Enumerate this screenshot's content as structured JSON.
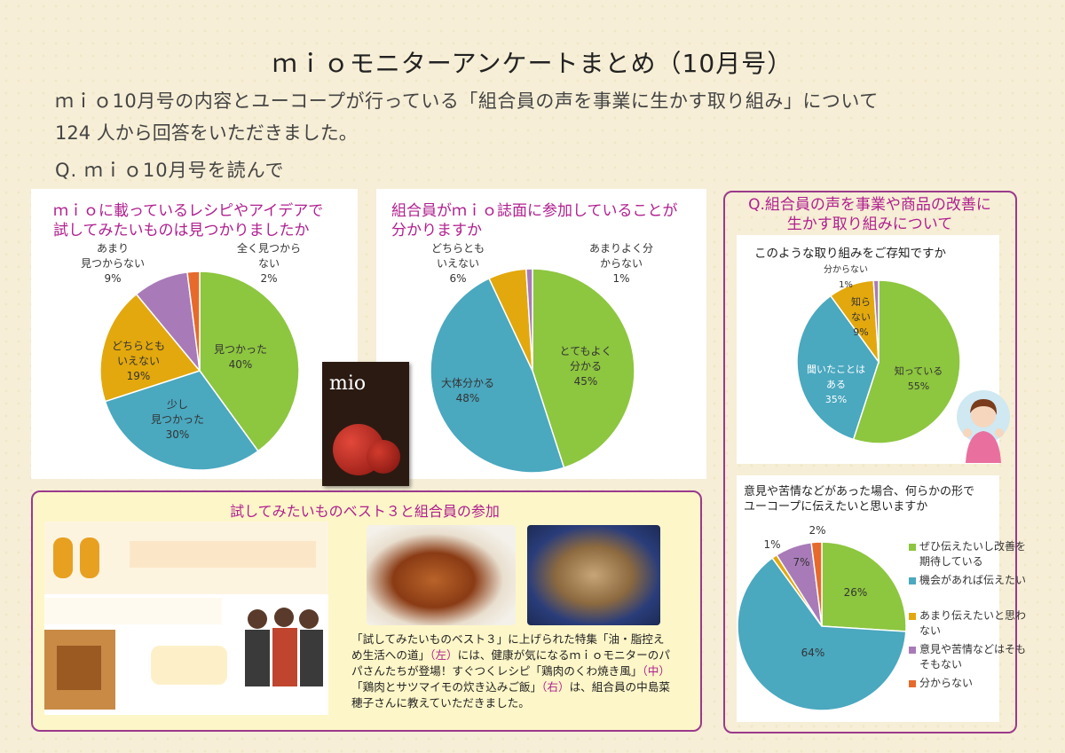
{
  "header": {
    "title": "ｍｉｏモニターアンケートまとめ（10月号）",
    "intro_line1": "ｍｉｏ10月号の内容とユーコープが行っている「組合員の声を事業に生かす取り組み」について",
    "intro_line2": "124 人から回答をいただきました。",
    "question": "Q. ｍｉｏ10月号を読んで"
  },
  "magazine": {
    "title": "mio"
  },
  "charts": {
    "c1": {
      "title_line1": "ｍｉｏに載っているレシピやアイデアで",
      "title_line2": "試してみたいものは見つかりましたか",
      "labels": [
        "見つかった",
        "少し\n見つかった",
        "どちらとも\nいえない",
        "あまり\n見つからない",
        "全く見つから\nない"
      ],
      "pcts": [
        "40%",
        "30%",
        "19%",
        "9%",
        "2%"
      ]
    },
    "c2": {
      "title_line1": "組合員がｍｉｏ誌面に参加していることが",
      "title_line2": "分かりますか",
      "labels": [
        "とてもよく\n分かる",
        "大体分かる",
        "どちらとも\nいえない",
        "あまりよく分\nからない"
      ],
      "pcts": [
        "45%",
        "48%",
        "6%",
        "1%"
      ]
    },
    "right_header": "Q.組合員の声を事業や商品の改善に生かす取り組みについて",
    "c3": {
      "title": "このような取り組みをご存知ですか",
      "labels": [
        "知っている",
        "聞いたことは\nある",
        "知ら\nない",
        "分からない"
      ],
      "pcts": [
        "55%",
        "35%",
        "9%",
        "1%"
      ]
    },
    "c4": {
      "title_line1": "意見や苦情などがあった場合、何らかの形で",
      "title_line2": "ユーコープに伝えたいと思いますか",
      "pcts": [
        "26%",
        "64%",
        "1%",
        "7%",
        "2%"
      ],
      "legend": [
        "ぜひ伝えたいし改善を\n期待している",
        "機会があれば伝えたい",
        "あまり伝えたいと思わ\nない",
        "意見や苦情などはそも\nそもない",
        "分からない"
      ]
    }
  },
  "bottom": {
    "title": "試してみたいものベスト３と組合員の参加",
    "caption_a": "「試してみたいものベスト３」に上げられた特集「油・脂控えめ生活への道」",
    "left_tag": "（左）",
    "caption_b": "には、健康が気になるｍｉｏモニターのパパさんたちが登場！すぐつくレシピ「鶏肉のくわ焼き風」",
    "mid_tag": "（中）",
    "caption_c": "「鶏肉とサツマイモの炊き込みご飯」",
    "right_tag": "（右）",
    "caption_d": "は、組合員の中島菜穂子さんに教えていただきました。"
  },
  "chart_data": [
    {
      "type": "pie",
      "title": "ｍｉｏに載っているレシピやアイデアで試してみたいものは見つかりましたか",
      "categories": [
        "見つかった",
        "少し見つかった",
        "どちらともいえない",
        "あまり見つからない",
        "全く見つからない"
      ],
      "values": [
        40,
        30,
        19,
        9,
        2
      ],
      "colors": [
        "#8dc63f",
        "#4aa8bf",
        "#e2a80d",
        "#a87bb8",
        "#e66a2c"
      ]
    },
    {
      "type": "pie",
      "title": "組合員がｍｉｏ誌面に参加していることが分かりますか",
      "categories": [
        "とてもよく分かる",
        "大体分かる",
        "どちらともいえない",
        "あまりよく分からない"
      ],
      "values": [
        45,
        48,
        6,
        1
      ],
      "colors": [
        "#8dc63f",
        "#4aa8bf",
        "#e2a80d",
        "#a87bb8"
      ]
    },
    {
      "type": "pie",
      "title": "このような取り組みをご存知ですか",
      "categories": [
        "知っている",
        "聞いたことはある",
        "知らない",
        "分からない"
      ],
      "values": [
        55,
        35,
        9,
        1
      ],
      "colors": [
        "#8dc63f",
        "#4aa8bf",
        "#e2a80d",
        "#a87bb8"
      ]
    },
    {
      "type": "pie",
      "title": "意見や苦情などがあった場合、何らかの形でユーコープに伝えたいと思いますか",
      "categories": [
        "ぜひ伝えたいし改善を期待している",
        "機会があれば伝えたい",
        "あまり伝えたいと思わない",
        "意見や苦情などはそもそもない",
        "分からない"
      ],
      "values": [
        26,
        64,
        1,
        7,
        2
      ],
      "colors": [
        "#8dc63f",
        "#4aa8bf",
        "#e2a80d",
        "#a87bb8",
        "#e66a2c"
      ],
      "legend_position": "right"
    }
  ]
}
